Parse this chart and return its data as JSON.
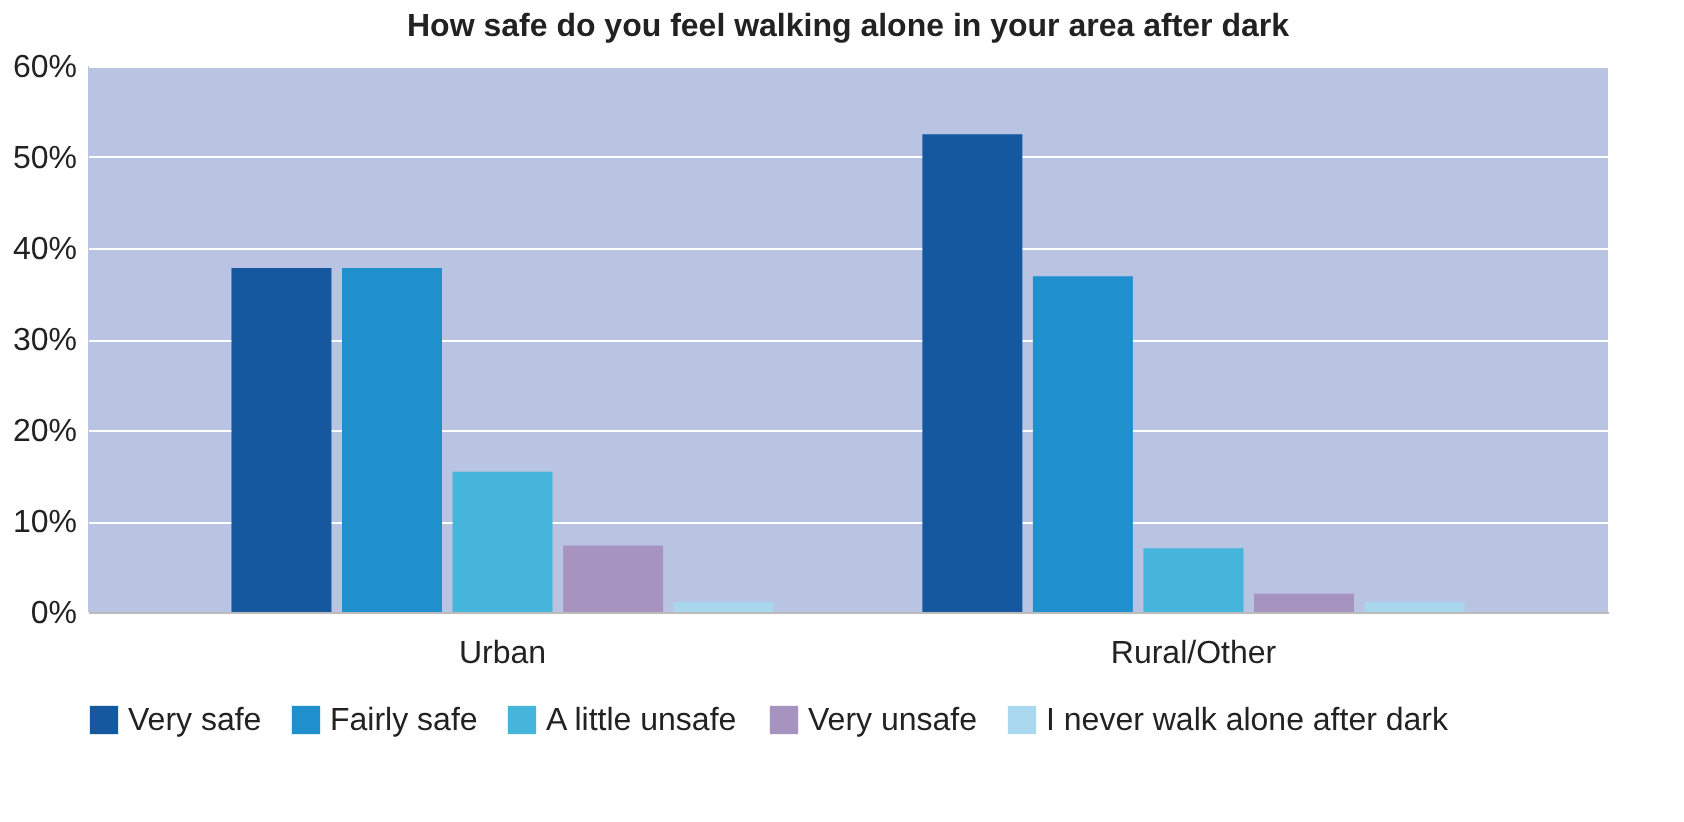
{
  "chart_data": {
    "type": "bar",
    "title": "How safe do you feel walking alone in your area after dark",
    "categories": [
      "Urban",
      "Rural/Other"
    ],
    "series": [
      {
        "name": "Very safe",
        "color": "#1558a0",
        "values": [
          37.8,
          52.5
        ]
      },
      {
        "name": "Fairly safe",
        "color": "#2090cc",
        "values": [
          37.8,
          36.9
        ]
      },
      {
        "name": "A little unsafe",
        "color": "#45b5dc",
        "values": [
          15.4,
          7.0
        ]
      },
      {
        "name": "Very unsafe",
        "color": "#a693c0",
        "values": [
          7.3,
          2.0
        ]
      },
      {
        "name": "I never walk alone after dark",
        "color": "#a9d8ee",
        "values": [
          1.1,
          1.1
        ]
      }
    ],
    "ylim": [
      0,
      60
    ],
    "yticks": [
      {
        "value": 0,
        "label": "0%"
      },
      {
        "value": 10,
        "label": "10%"
      },
      {
        "value": 20,
        "label": "20%"
      },
      {
        "value": 30,
        "label": "30%"
      },
      {
        "value": 40,
        "label": "40%"
      },
      {
        "value": 50,
        "label": "50%"
      },
      {
        "value": 60,
        "label": "60%"
      }
    ],
    "grid": "y",
    "legend": "bottom"
  }
}
